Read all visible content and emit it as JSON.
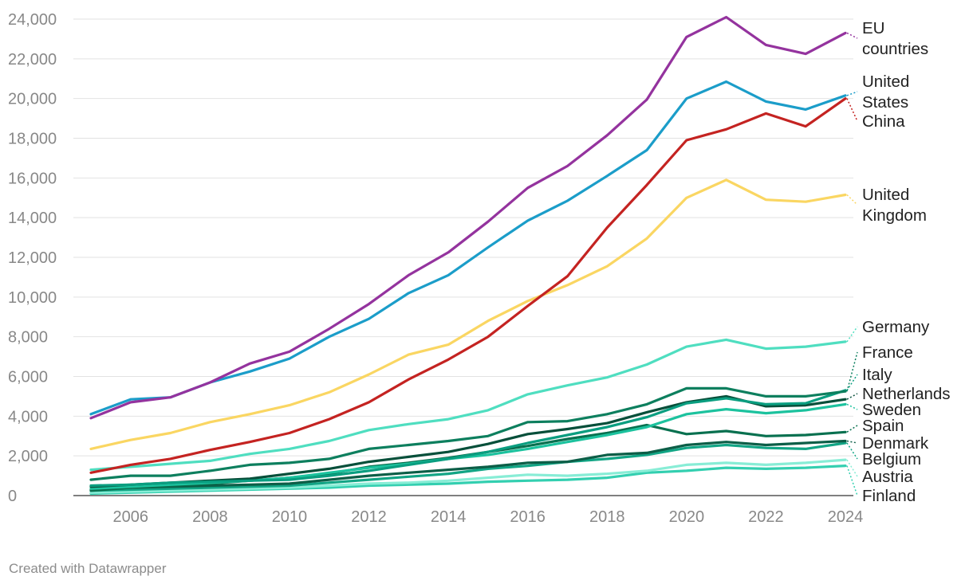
{
  "chart_data": {
    "type": "line",
    "title": "",
    "xlabel": "",
    "ylabel": "",
    "x": [
      2005,
      2006,
      2007,
      2008,
      2009,
      2010,
      2011,
      2012,
      2013,
      2014,
      2015,
      2016,
      2017,
      2018,
      2019,
      2020,
      2021,
      2022,
      2023,
      2024
    ],
    "x_ticks": [
      "2006",
      "2008",
      "2010",
      "2012",
      "2014",
      "2016",
      "2018",
      "2020",
      "2022",
      "2024"
    ],
    "y_ticks": [
      "0",
      "2,000",
      "4,000",
      "6,000",
      "8,000",
      "10,000",
      "12,000",
      "14,000",
      "16,000",
      "18,000",
      "20,000",
      "22,000",
      "24,000"
    ],
    "ylim": [
      0,
      24000
    ],
    "grid": true,
    "series": [
      {
        "name": "EU countries",
        "label_lines": [
          "EU",
          "countries"
        ],
        "color": "#94339e",
        "values": [
          3900,
          4700,
          4950,
          5700,
          6650,
          7250,
          8400,
          9650,
          11100,
          12250,
          13800,
          15500,
          16600,
          18150,
          19950,
          23100,
          24100,
          22700,
          22250,
          23300
        ]
      },
      {
        "name": "United States",
        "label_lines": [
          "United",
          "States"
        ],
        "color": "#1b9dc9",
        "values": [
          4100,
          4850,
          4950,
          5700,
          6250,
          6900,
          8000,
          8900,
          10200,
          11100,
          12500,
          13850,
          14850,
          16100,
          17400,
          20000,
          20850,
          19850,
          19450,
          20150
        ]
      },
      {
        "name": "China",
        "label_lines": [
          "China"
        ],
        "color": "#c42321",
        "values": [
          1150,
          1550,
          1850,
          2300,
          2700,
          3150,
          3850,
          4700,
          5850,
          6850,
          8000,
          9550,
          11050,
          13500,
          15650,
          17900,
          18450,
          19250,
          18600,
          20000
        ]
      },
      {
        "name": "United Kingdom",
        "label_lines": [
          "United",
          "Kingdom"
        ],
        "color": "#fad662",
        "values": [
          2350,
          2800,
          3150,
          3700,
          4100,
          4550,
          5200,
          6100,
          7100,
          7600,
          8800,
          9800,
          10600,
          11550,
          12950,
          15000,
          15900,
          14900,
          14800,
          15150
        ]
      },
      {
        "name": "Germany",
        "label_lines": [
          "Germany"
        ],
        "color": "#4fdec0",
        "values": [
          1300,
          1450,
          1600,
          1750,
          2100,
          2350,
          2750,
          3300,
          3600,
          3850,
          4300,
          5100,
          5550,
          5950,
          6600,
          7500,
          7850,
          7400,
          7500,
          7750
        ]
      },
      {
        "name": "France",
        "label_lines": [
          "France"
        ],
        "color": "#0d7f5e",
        "values": [
          800,
          1000,
          1000,
          1250,
          1550,
          1650,
          1850,
          2350,
          2550,
          2750,
          3000,
          3700,
          3750,
          4100,
          4600,
          5400,
          5400,
          5000,
          5000,
          5250
        ]
      },
      {
        "name": "Italy",
        "label_lines": [
          "Italy"
        ],
        "color": "#0a9e80",
        "values": [
          500,
          550,
          650,
          700,
          750,
          800,
          1000,
          1250,
          1550,
          1850,
          2200,
          2650,
          3050,
          3450,
          3950,
          4650,
          4900,
          4600,
          4650,
          5300
        ]
      },
      {
        "name": "Netherlands",
        "label_lines": [
          "Netherlands"
        ],
        "color": "#074f3a",
        "values": [
          450,
          550,
          650,
          750,
          850,
          1100,
          1350,
          1700,
          1950,
          2200,
          2600,
          3100,
          3350,
          3650,
          4200,
          4700,
          5000,
          4500,
          4550,
          4850
        ]
      },
      {
        "name": "Sweden",
        "label_lines": [
          "Sweden"
        ],
        "color": "#1cc29e",
        "values": [
          350,
          450,
          550,
          650,
          750,
          900,
          1150,
          1400,
          1600,
          1850,
          2050,
          2350,
          2700,
          3050,
          3450,
          4100,
          4350,
          4150,
          4300,
          4600
        ]
      },
      {
        "name": "Spain",
        "label_lines": [
          "Spain"
        ],
        "color": "#08704f",
        "values": [
          250,
          400,
          500,
          600,
          750,
          900,
          1100,
          1450,
          1650,
          1900,
          2200,
          2500,
          2850,
          3150,
          3550,
          3100,
          3250,
          3000,
          3050,
          3200
        ]
      },
      {
        "name": "Denmark",
        "label_lines": [
          "Denmark"
        ],
        "color": "#0c5e47",
        "values": [
          300,
          400,
          450,
          500,
          550,
          600,
          800,
          1000,
          1150,
          1300,
          1450,
          1650,
          1700,
          2050,
          2150,
          2550,
          2700,
          2550,
          2650,
          2750
        ]
      },
      {
        "name": "Belgium",
        "label_lines": [
          "Belgium"
        ],
        "color": "#12a585",
        "values": [
          250,
          300,
          350,
          400,
          450,
          500,
          650,
          800,
          950,
          1100,
          1350,
          1500,
          1700,
          1850,
          2050,
          2400,
          2550,
          2400,
          2350,
          2650
        ]
      },
      {
        "name": "Austria",
        "label_lines": [
          "Austria"
        ],
        "color": "#88edd6",
        "values": [
          150,
          200,
          250,
          300,
          350,
          400,
          500,
          600,
          650,
          750,
          900,
          1050,
          1000,
          1100,
          1250,
          1550,
          1650,
          1550,
          1650,
          1800
        ]
      },
      {
        "name": "Finland",
        "label_lines": [
          "Finland"
        ],
        "color": "#33cfb0",
        "values": [
          100,
          150,
          200,
          250,
          300,
          350,
          400,
          500,
          550,
          600,
          700,
          750,
          800,
          900,
          1150,
          1250,
          1400,
          1350,
          1400,
          1500
        ]
      }
    ]
  },
  "footer": "Created with Datawrapper"
}
